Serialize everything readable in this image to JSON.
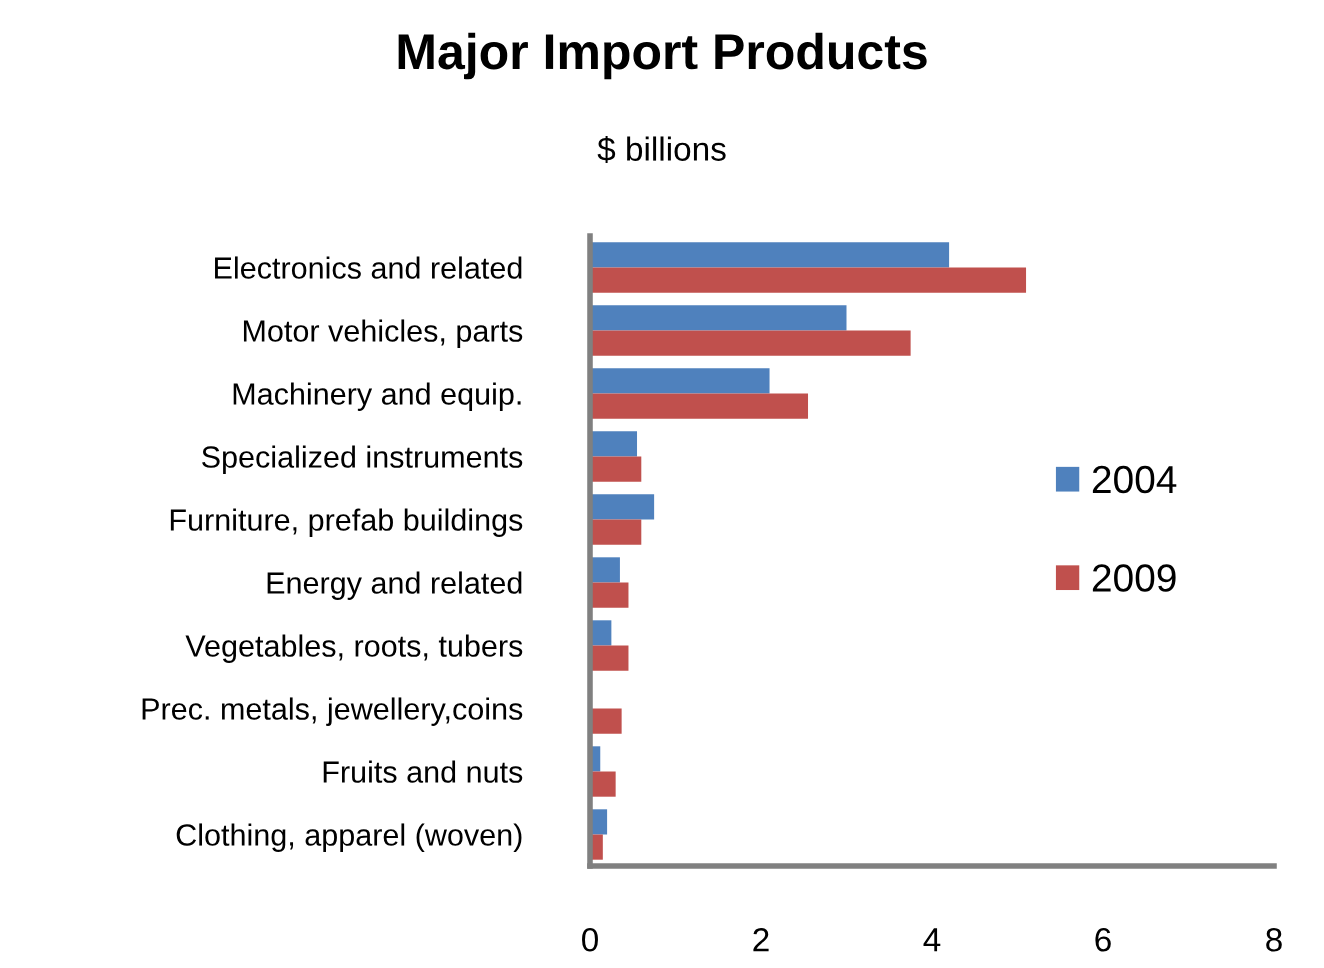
{
  "chart_data": {
    "type": "bar",
    "orientation": "horizontal",
    "title": "Major Import Products",
    "subtitle": "$ billions",
    "categories": [
      "Electronics and related",
      "Motor vehicles, parts",
      "Machinery and equip.",
      "Specialized instruments",
      "Furniture, prefab buildings",
      "Energy and related",
      "Vegetables, roots, tubers",
      "Prec. metals, jewellery,coins",
      "Fruits and nuts",
      "Clothing, apparel (woven)"
    ],
    "series": [
      {
        "name": "2004",
        "color": "#4f81bd",
        "values": [
          4.2,
          3.0,
          2.1,
          0.55,
          0.75,
          0.35,
          0.25,
          0,
          0.12,
          0.2
        ]
      },
      {
        "name": "2009",
        "color": "#c0504d",
        "values": [
          5.1,
          3.75,
          2.55,
          0.6,
          0.6,
          0.45,
          0.45,
          0.37,
          0.3,
          0.15
        ]
      }
    ],
    "xlim": [
      0,
      8
    ],
    "xticks": [
      0,
      2,
      4,
      6,
      8
    ],
    "grid": false,
    "legend": "right"
  }
}
